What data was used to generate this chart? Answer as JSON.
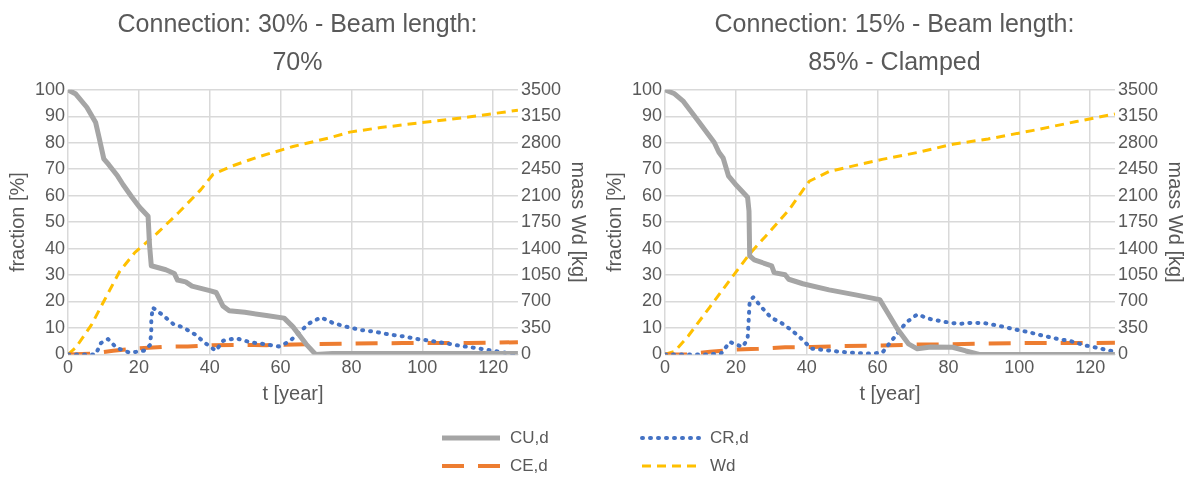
{
  "chart_data": [
    {
      "type": "line",
      "title": "Connection: 30% - Beam length: 70%",
      "xlabel": "t [year]",
      "ylabel": "fraction [%]",
      "y2label": "mass Wd [kg]",
      "xlim": [
        0,
        127
      ],
      "xticks": [
        0,
        20,
        40,
        60,
        80,
        100,
        120
      ],
      "ylim": [
        0,
        100
      ],
      "yticks": [
        0,
        10,
        20,
        30,
        40,
        50,
        60,
        70,
        80,
        90,
        100
      ],
      "y2lim": [
        0,
        3500
      ],
      "y2ticks": [
        0,
        350,
        700,
        1050,
        1400,
        1750,
        2100,
        2450,
        2800,
        3150,
        3500
      ],
      "grid": true,
      "legend": "bottom",
      "marker": "none",
      "series": [
        {
          "name": "CU,d",
          "color": "#a5a5a5",
          "line_style": "solid",
          "x": [
            0,
            2.2,
            5.3,
            7.8,
            8.8,
            10.1,
            11.5,
            14,
            15.5,
            18,
            20.2,
            22.6,
            23,
            23.5,
            27.6,
            30,
            30.9,
            33.2,
            35,
            40,
            41.8,
            43.7,
            45.5,
            49.9,
            56,
            61,
            63.5,
            67.2,
            69.9,
            74.6,
            127
          ],
          "values": [
            100,
            98.4,
            93.4,
            87.6,
            81.8,
            73.9,
            71.7,
            67.4,
            64.2,
            59.5,
            55.6,
            52.2,
            41.4,
            33.5,
            32,
            30.6,
            28.1,
            27.4,
            25.8,
            24.1,
            23.4,
            18.3,
            16.5,
            15.9,
            14.7,
            13.7,
            10.4,
            3.9,
            0,
            0.3,
            0.3
          ]
        },
        {
          "name": "CR,d",
          "color": "#4472c4",
          "line_style": "dotted",
          "x": [
            0,
            7.8,
            9.3,
            11.3,
            13.7,
            17.5,
            21.4,
            23.1,
            23.5,
            23.5,
            23.9,
            26.6,
            29.7,
            32.5,
            35.9,
            38.7,
            41.7,
            43.8,
            47.4,
            51.4,
            55.4,
            59.5,
            62.5,
            65.2,
            68,
            71.4,
            74.9,
            78.8,
            82.8,
            86.8,
            90.7,
            94.7,
            98.6,
            102.6,
            106.6,
            110.5,
            114.5,
            118.5,
            122.4,
            126.4
          ],
          "values": [
            0,
            0,
            4.3,
            5.8,
            2.5,
            0.6,
            1.4,
            3.5,
            8.2,
            13,
            17.7,
            15,
            11.5,
            10.2,
            7.5,
            4.3,
            1.4,
            5.2,
            6.1,
            4.6,
            3.9,
            3,
            4.9,
            8.2,
            11.7,
            14,
            11.8,
            10.4,
            9.2,
            8.5,
            7.5,
            6.8,
            5.8,
            5.1,
            4.2,
            3.3,
            2.5,
            1.7,
            0.9,
            0
          ]
        },
        {
          "name": "CE,d",
          "color": "#ed7d31",
          "line_style": "dashed",
          "x": [
            0,
            6.6,
            12.7,
            20.2,
            27.6,
            33.8,
            40.6,
            48.6,
            56,
            61,
            68.4,
            77,
            86.9,
            94.4,
            105.5,
            113,
            127
          ],
          "values": [
            0,
            0.3,
            1.4,
            2.3,
            2.9,
            3,
            3.5,
            3.6,
            3.5,
            3.6,
            3.9,
            4,
            4.2,
            4.3,
            4.3,
            4.3,
            4.6
          ]
        },
        {
          "name": "Wd",
          "color": "#ffc000",
          "line_style": "dashed",
          "axis": "y2",
          "x": [
            0,
            2.2,
            6.6,
            10.3,
            14.6,
            18.9,
            25.1,
            31.3,
            37.5,
            40.9,
            46.2,
            53.5,
            63.5,
            73.4,
            79.5,
            88.2,
            100.6,
            113,
            127
          ],
          "values": [
            0,
            90,
            390,
            720,
            1100,
            1350,
            1600,
            1880,
            2180,
            2380,
            2490,
            2610,
            2750,
            2860,
            2940,
            3000,
            3070,
            3140,
            3230
          ]
        }
      ]
    },
    {
      "type": "line",
      "title": "Connection: 15% - Beam length: 85% - Clamped",
      "xlabel": "t [year]",
      "ylabel": "fraction [%]",
      "y2label": "mass Wd [kg]",
      "xlim": [
        0,
        127
      ],
      "xticks": [
        0,
        20,
        40,
        60,
        80,
        100,
        120
      ],
      "ylim": [
        0,
        100
      ],
      "yticks": [
        0,
        10,
        20,
        30,
        40,
        50,
        60,
        70,
        80,
        90,
        100
      ],
      "y2lim": [
        0,
        3500
      ],
      "y2ticks": [
        0,
        350,
        700,
        1050,
        1400,
        1750,
        2100,
        2450,
        2800,
        3150,
        3500
      ],
      "grid": true,
      "legend": "bottom",
      "marker": "none",
      "series": [
        {
          "name": "CU,d",
          "color": "#a5a5a5",
          "line_style": "solid",
          "x": [
            0,
            2.7,
            5.2,
            9,
            13.9,
            15.2,
            16.4,
            17.9,
            20.2,
            23.3,
            23.7,
            23.9,
            25.2,
            30.1,
            30.8,
            33.9,
            34.9,
            38.9,
            46.3,
            53.8,
            60.6,
            62.5,
            65.6,
            68.7,
            71.2,
            75,
            81.2,
            84.9,
            88.7,
            127
          ],
          "values": [
            100,
            98.5,
            95.6,
            88.9,
            80.1,
            76.4,
            74.2,
            67.5,
            63.8,
            59.4,
            54.2,
            37.2,
            35.7,
            33.5,
            30.9,
            30.1,
            28.4,
            26.7,
            24.4,
            22.5,
            20.7,
            16.5,
            9.6,
            4,
            2.1,
            2.8,
            2.7,
            1.3,
            0,
            0
          ]
        },
        {
          "name": "CR,d",
          "color": "#4472c4",
          "line_style": "dotted",
          "x": [
            0,
            8.3,
            12.1,
            15.8,
            18.3,
            21.9,
            23.3,
            23.5,
            23.7,
            23.9,
            24.9,
            27.4,
            29.9,
            32.6,
            35.7,
            38.6,
            41.3,
            45.3,
            49.3,
            53.3,
            57.3,
            61.3,
            63.5,
            65.9,
            68.1,
            71.2,
            75,
            79,
            82.9,
            86.9,
            90.9,
            94.9,
            98.6,
            102.6,
            106.6,
            110.6,
            114.6,
            118.3,
            122.3,
            126.3
          ],
          "values": [
            0,
            0,
            0,
            0.3,
            4.7,
            2.8,
            5.8,
            10.3,
            15.4,
            20.1,
            21.6,
            17.6,
            13.9,
            12.1,
            9.2,
            5.8,
            2.2,
            1.6,
            1,
            0.6,
            0.3,
            0.6,
            4.4,
            8.4,
            12.1,
            15.1,
            13.3,
            12.3,
            11.5,
            12,
            11.7,
            10.6,
            9.5,
            8.4,
            7.1,
            5.9,
            5,
            3.5,
            2.4,
            1.2
          ]
        },
        {
          "name": "CE,d",
          "color": "#ed7d31",
          "line_style": "dashed",
          "x": [
            0,
            6.5,
            12.7,
            19.6,
            26.4,
            33.9,
            41.3,
            48.8,
            61.3,
            70,
            81.2,
            91.2,
            103.6,
            116.1,
            127
          ],
          "values": [
            0,
            0,
            1,
            1.8,
            2.1,
            2.7,
            2.8,
            3.1,
            3.4,
            3.7,
            3.8,
            4.1,
            4.3,
            4.3,
            4.4
          ]
        },
        {
          "name": "Wd",
          "color": "#ffc000",
          "line_style": "dashed",
          "axis": "y2",
          "x": [
            0,
            2.7,
            6.5,
            12.7,
            18.9,
            23.9,
            28.9,
            35.1,
            40.7,
            46.3,
            53.8,
            61.3,
            71.2,
            81.2,
            91.2,
            103.6,
            116.1,
            127
          ],
          "values": [
            0,
            40,
            240,
            630,
            1020,
            1330,
            1590,
            1920,
            2290,
            2420,
            2500,
            2580,
            2670,
            2780,
            2850,
            2960,
            3080,
            3180
          ]
        }
      ]
    }
  ]
}
